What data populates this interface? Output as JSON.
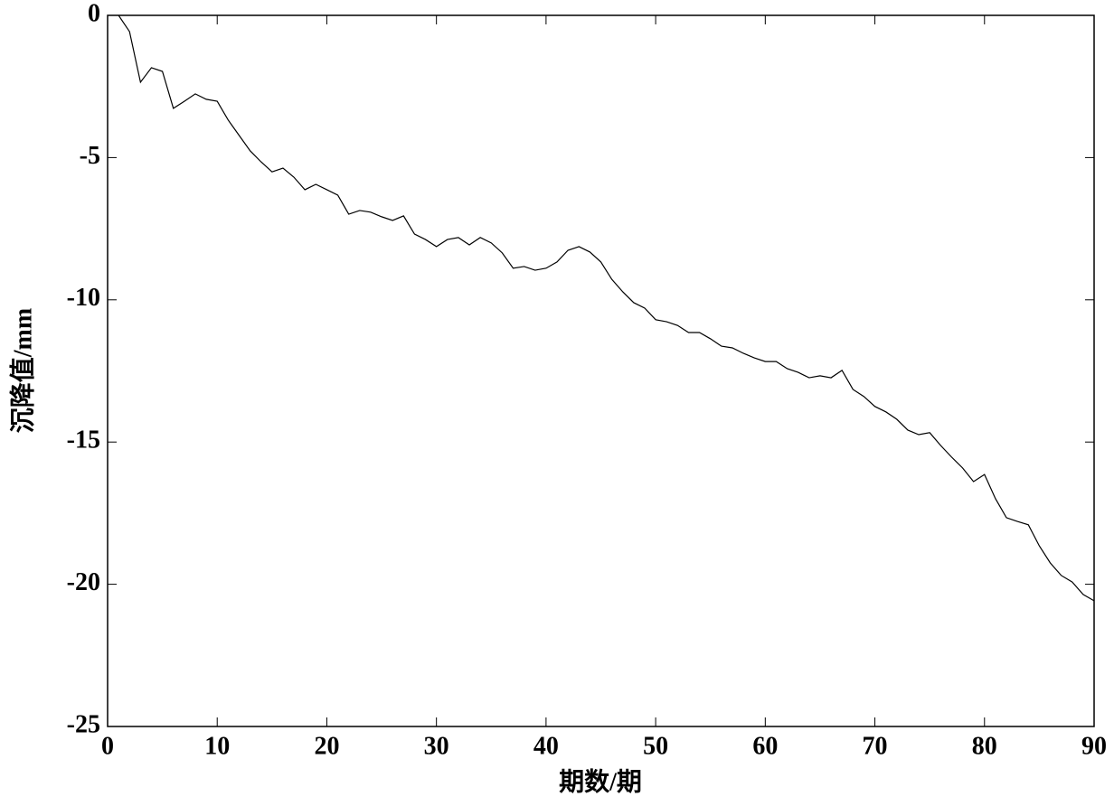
{
  "chart_data": {
    "type": "line",
    "xlabel": "期数/期",
    "ylabel": "沉降值/mm",
    "x": [
      1,
      2,
      3,
      4,
      5,
      6,
      7,
      8,
      9,
      10,
      11,
      12,
      13,
      14,
      15,
      16,
      17,
      18,
      19,
      20,
      21,
      22,
      23,
      24,
      25,
      26,
      27,
      28,
      29,
      30,
      31,
      32,
      33,
      34,
      35,
      36,
      37,
      38,
      39,
      40,
      41,
      42,
      43,
      44,
      45,
      46,
      47,
      48,
      49,
      50,
      51,
      52,
      53,
      54,
      55,
      56,
      57,
      58,
      59,
      60,
      61,
      62,
      63,
      64,
      65,
      66,
      67,
      68,
      69,
      70,
      71,
      72,
      73,
      74,
      75,
      76,
      77,
      78,
      79,
      80,
      81,
      82,
      83,
      84,
      85,
      86,
      87,
      88,
      89,
      90
    ],
    "series": [
      {
        "color": "#000000",
        "values": [
          0,
          -0.57,
          -2.35,
          -1.84,
          -1.97,
          -3.27,
          -3.02,
          -2.76,
          -2.95,
          -3.02,
          -3.68,
          -4.22,
          -4.76,
          -5.15,
          -5.5,
          -5.37,
          -5.69,
          -6.13,
          -5.94,
          -6.13,
          -6.32,
          -6.99,
          -6.86,
          -6.92,
          -7.08,
          -7.21,
          -7.05,
          -7.69,
          -7.88,
          -8.13,
          -7.88,
          -7.81,
          -8.07,
          -7.81,
          -8.0,
          -8.35,
          -8.89,
          -8.83,
          -8.96,
          -8.89,
          -8.67,
          -8.26,
          -8.13,
          -8.32,
          -8.67,
          -9.28,
          -9.72,
          -10.1,
          -10.29,
          -10.7,
          -10.77,
          -10.9,
          -11.15,
          -11.15,
          -11.37,
          -11.63,
          -11.69,
          -11.88,
          -12.04,
          -12.17,
          -12.17,
          -12.42,
          -12.55,
          -12.74,
          -12.67,
          -12.74,
          -12.48,
          -13.15,
          -13.4,
          -13.75,
          -13.94,
          -14.2,
          -14.58,
          -14.74,
          -14.67,
          -15.12,
          -15.53,
          -15.91,
          -16.39,
          -16.14,
          -16.99,
          -17.66,
          -17.79,
          -17.91,
          -18.65,
          -19.25,
          -19.69,
          -19.92,
          -20.36,
          -20.58
        ]
      }
    ],
    "xlim": [
      0,
      90
    ],
    "xticks": [
      0,
      10,
      20,
      30,
      40,
      50,
      60,
      70,
      80,
      90
    ],
    "ylim": [
      -25,
      0
    ],
    "yticks": [
      -25,
      -20,
      -15,
      -10,
      -5,
      0
    ]
  }
}
